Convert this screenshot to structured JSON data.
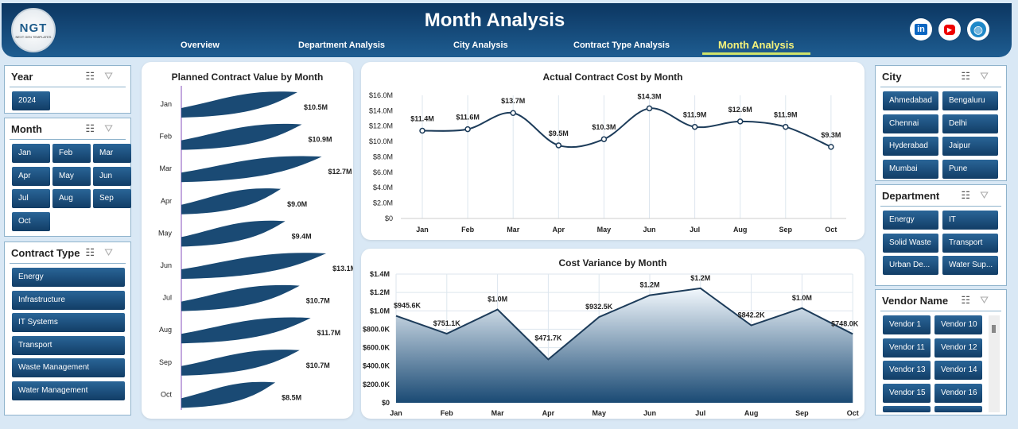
{
  "header": {
    "title": "Month Analysis",
    "logo_text": "NGT",
    "logo_sub": "NEXT GEN TEMPLATES",
    "nav": [
      "Overview",
      "Department Analysis",
      "City Analysis",
      "Contract Type Analysis",
      "Month Analysis"
    ],
    "active_nav": "Month Analysis",
    "social": [
      "linkedin-icon",
      "youtube-icon",
      "globe-icon"
    ]
  },
  "slicers": {
    "year": {
      "title": "Year",
      "items": [
        "2024"
      ]
    },
    "month": {
      "title": "Month",
      "items": [
        "Jan",
        "Feb",
        "Mar",
        "Apr",
        "May",
        "Jun",
        "Jul",
        "Aug",
        "Sep",
        "Oct"
      ]
    },
    "contract_type": {
      "title": "Contract Type",
      "items": [
        "Energy",
        "Infrastructure",
        "IT Systems",
        "Transport",
        "Waste Management",
        "Water Management"
      ]
    },
    "city": {
      "title": "City",
      "items": [
        "Ahmedabad",
        "Bengaluru",
        "Chennai",
        "Delhi",
        "Hyderabad",
        "Jaipur",
        "Mumbai",
        "Pune"
      ]
    },
    "department": {
      "title": "Department",
      "items": [
        "Energy",
        "IT",
        "Solid Waste",
        "Transport",
        "Urban De...",
        "Water Sup..."
      ]
    },
    "vendor": {
      "title": "Vendor Name",
      "items": [
        "Vendor 1",
        "Vendor 10",
        "Vendor 11",
        "Vendor 12",
        "Vendor 13",
        "Vendor 14",
        "Vendor 15",
        "Vendor 16"
      ]
    }
  },
  "colors": {
    "header": "#0c3661",
    "button": "#1b4f80",
    "accent": "#f5f27a",
    "bar": "#1a4a74"
  },
  "chart_data": [
    {
      "type": "bar",
      "orientation": "horizontal",
      "title": "Planned Contract Value by Month",
      "categories": [
        "Jan",
        "Feb",
        "Mar",
        "Apr",
        "May",
        "Jun",
        "Jul",
        "Aug",
        "Sep",
        "Oct"
      ],
      "values": [
        10.5,
        10.9,
        12.7,
        9.0,
        9.4,
        13.1,
        10.7,
        11.7,
        10.7,
        8.5
      ],
      "labels": [
        "$10.5M",
        "$10.9M",
        "$12.7M",
        "$9.0M",
        "$9.4M",
        "$13.1M",
        "$10.7M",
        "$11.7M",
        "$10.7M",
        "$8.5M"
      ],
      "unit": "$M"
    },
    {
      "type": "line",
      "smooth": true,
      "title": "Actual Contract Cost by Month",
      "categories": [
        "Jan",
        "Feb",
        "Mar",
        "Apr",
        "May",
        "Jun",
        "Jul",
        "Aug",
        "Sep",
        "Oct"
      ],
      "values": [
        11.4,
        11.6,
        13.7,
        9.5,
        10.3,
        14.3,
        11.9,
        12.6,
        11.9,
        9.3
      ],
      "labels": [
        "$11.4M",
        "$11.6M",
        "$13.7M",
        "$9.5M",
        "$10.3M",
        "$14.3M",
        "$11.9M",
        "$12.6M",
        "$11.9M",
        "$9.3M"
      ],
      "ylim": [
        0,
        16
      ],
      "yticks": [
        "$0",
        "$2.0M",
        "$4.0M",
        "$6.0M",
        "$8.0M",
        "$10.0M",
        "$12.0M",
        "$14.0M",
        "$16.0M"
      ],
      "grid": "vertical"
    },
    {
      "type": "area",
      "title": "Cost Variance by Month",
      "categories": [
        "Jan",
        "Feb",
        "Mar",
        "Apr",
        "May",
        "Jun",
        "Jul",
        "Aug",
        "Sep",
        "Oct"
      ],
      "values": [
        945.6,
        751.1,
        1015,
        471.7,
        932.5,
        1170,
        1245,
        842.2,
        1030,
        748.0
      ],
      "unit": "$K",
      "labels": [
        "$945.6K",
        "$751.1K",
        "$1.0M",
        "$471.7K",
        "$932.5K",
        "$1.2M",
        "$1.2M",
        "$842.2K",
        "$1.0M",
        "$748.0K"
      ],
      "ylim": [
        0,
        1400
      ],
      "yticks": [
        "$0",
        "$200.0K",
        "$400.0K",
        "$600.0K",
        "$800.0K",
        "$1.0M",
        "$1.2M",
        "$1.4M"
      ],
      "grid": "both"
    }
  ]
}
